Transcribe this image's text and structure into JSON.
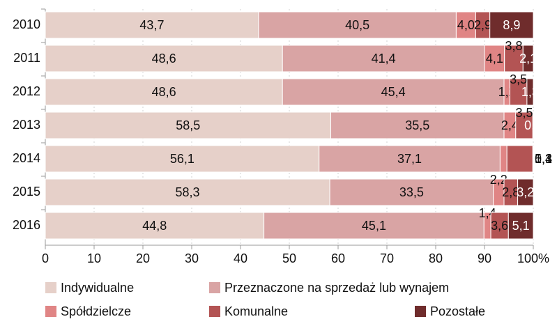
{
  "chart_data": {
    "type": "stacked_barh",
    "categories": [
      "2010",
      "2011",
      "2012",
      "2013",
      "2014",
      "2015",
      "2016"
    ],
    "series": [
      {
        "name": "Indywidualne",
        "color": "#e6d0c9",
        "values": [
          43.7,
          48.6,
          48.6,
          58.5,
          56.1,
          58.3,
          44.8
        ],
        "value_labels": [
          "43,7",
          "48,6",
          "48,6",
          "58,5",
          "56,1",
          "58,3",
          "44,8"
        ]
      },
      {
        "name": "Przeznaczone na sprzedaż lub wynajem",
        "color": "#d9a4a4",
        "values": [
          40.5,
          41.4,
          45.4,
          35.5,
          37.1,
          33.5,
          45.1
        ],
        "value_labels": [
          "40,5",
          "41,4",
          "45,4",
          "35,5",
          "37,1",
          "33,5",
          "45,1"
        ]
      },
      {
        "name": "Spółdzielcze",
        "color": "#e08585",
        "values": [
          4.0,
          4.1,
          1.2,
          2.4,
          1.4,
          2.2,
          1.4
        ],
        "value_labels": [
          "4,0",
          "4,1",
          "1,2",
          "2,4",
          "1,4",
          "2,2",
          "1,4"
        ]
      },
      {
        "name": "Komunalne",
        "color": "#b35454",
        "values": [
          2.9,
          3.8,
          3.5,
          3.5,
          5.3,
          2.8,
          3.6
        ],
        "value_labels": [
          "2,9",
          "3,8",
          "3,5",
          "3,5",
          "5,3",
          "2,8",
          "3,6"
        ]
      },
      {
        "name": "Pozostałe",
        "color": "#6f2c2c",
        "values": [
          8.9,
          2.1,
          1.3,
          0.1,
          0.1,
          3.2,
          5.1
        ],
        "value_labels": [
          "8,9",
          "2,1",
          "1,3",
          "0,1",
          "0,1",
          "3,2",
          "5,1"
        ]
      }
    ],
    "xlim": [
      0,
      100
    ],
    "xticks": [
      0,
      10,
      20,
      30,
      40,
      50,
      60,
      70,
      80,
      90,
      {
        "value": 100,
        "label": "100%"
      }
    ],
    "grid": true
  }
}
